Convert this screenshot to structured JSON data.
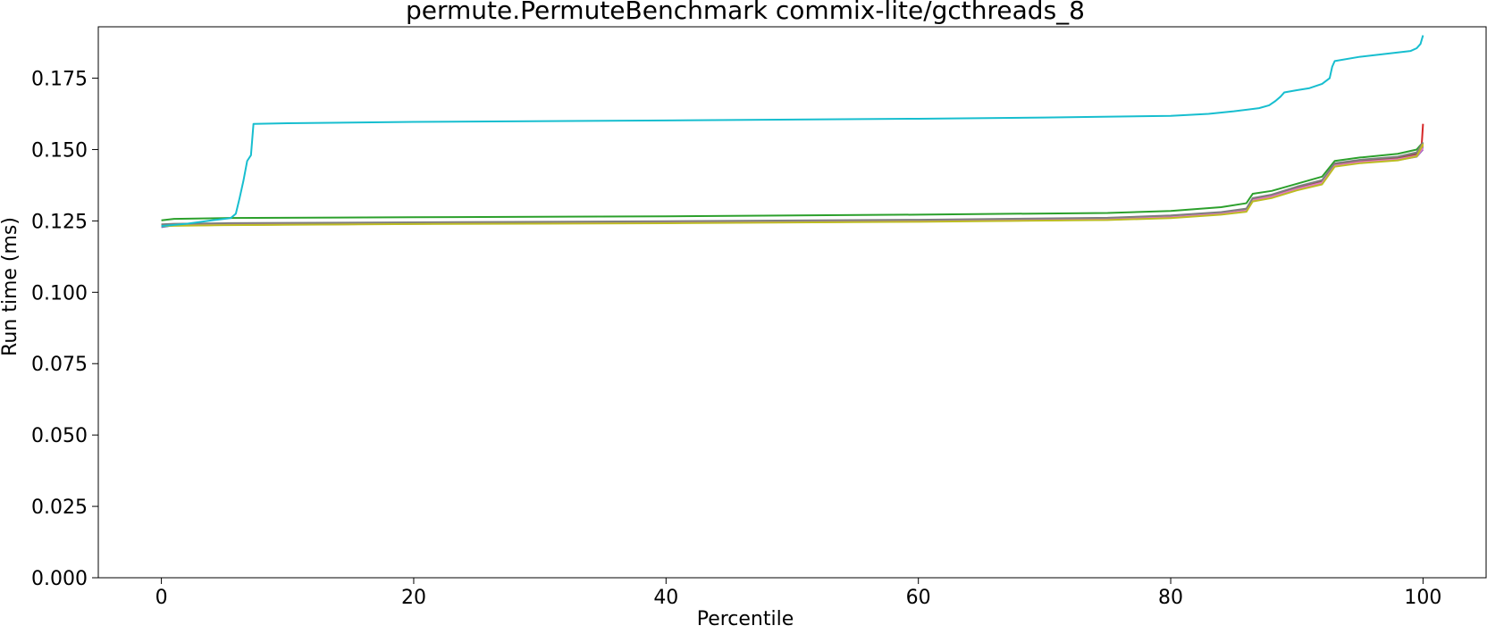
{
  "chart_data": {
    "type": "line",
    "title": "permute.PermuteBenchmark commix-lite/gcthreads_8",
    "xlabel": "Percentile",
    "ylabel": "Run time (ms)",
    "xlim": [
      -5,
      105
    ],
    "ylim": [
      0.0,
      0.193
    ],
    "xticks": [
      0,
      20,
      40,
      60,
      80,
      100
    ],
    "xtick_labels": [
      "0",
      "20",
      "40",
      "60",
      "80",
      "100"
    ],
    "yticks": [
      0.0,
      0.025,
      0.05,
      0.075,
      0.1,
      0.125,
      0.15,
      0.175
    ],
    "ytick_labels": [
      "0.000",
      "0.025",
      "0.050",
      "0.075",
      "0.100",
      "0.125",
      "0.150",
      "0.175"
    ],
    "grid": false,
    "legend": false,
    "series": [
      {
        "color": "#1f77b4",
        "x": [
          0,
          1,
          5,
          20,
          40,
          60,
          75,
          80,
          84,
          86,
          86.5,
          88,
          90,
          92,
          93,
          95,
          98,
          99.5,
          100
        ],
        "y": [
          0.1228,
          0.1235,
          0.1237,
          0.1242,
          0.1245,
          0.125,
          0.1256,
          0.1263,
          0.1275,
          0.1285,
          0.1322,
          0.1335,
          0.1362,
          0.1385,
          0.1445,
          0.1458,
          0.1468,
          0.148,
          0.151
        ]
      },
      {
        "color": "#ff7f0e",
        "x": [
          0,
          1,
          5,
          20,
          40,
          60,
          75,
          80,
          84,
          86,
          86.5,
          88,
          90,
          92,
          93,
          95,
          98,
          99.5,
          100
        ],
        "y": [
          0.1232,
          0.1234,
          0.1236,
          0.124,
          0.1243,
          0.1248,
          0.1254,
          0.1262,
          0.1273,
          0.1283,
          0.132,
          0.1332,
          0.1358,
          0.138,
          0.1442,
          0.1455,
          0.1465,
          0.1478,
          0.1515
        ]
      },
      {
        "color": "#2ca02c",
        "x": [
          0,
          1,
          5,
          20,
          40,
          60,
          75,
          80,
          84,
          86,
          86.5,
          88,
          90,
          92,
          93,
          95,
          98,
          99.5,
          100
        ],
        "y": [
          0.1252,
          0.1257,
          0.126,
          0.1263,
          0.1266,
          0.1272,
          0.1278,
          0.1285,
          0.1298,
          0.1312,
          0.1345,
          0.1355,
          0.138,
          0.1405,
          0.146,
          0.1472,
          0.1485,
          0.15,
          0.1525
        ]
      },
      {
        "color": "#d62728",
        "x": [
          0,
          1,
          5,
          20,
          40,
          60,
          75,
          80,
          84,
          86,
          86.5,
          88,
          90,
          92,
          93,
          95,
          98,
          99.5,
          99.9,
          100
        ],
        "y": [
          0.1233,
          0.1236,
          0.1238,
          0.1242,
          0.1246,
          0.1251,
          0.1257,
          0.1265,
          0.1277,
          0.1288,
          0.1326,
          0.1338,
          0.1365,
          0.1388,
          0.1448,
          0.146,
          0.147,
          0.1485,
          0.152,
          0.159
        ]
      },
      {
        "color": "#9467bd",
        "x": [
          0,
          1,
          5,
          20,
          40,
          60,
          75,
          80,
          84,
          86,
          86.5,
          88,
          90,
          92,
          93,
          95,
          98,
          99.5,
          100
        ],
        "y": [
          0.123,
          0.1234,
          0.1236,
          0.124,
          0.1244,
          0.1249,
          0.1255,
          0.1262,
          0.1274,
          0.1284,
          0.1321,
          0.1333,
          0.136,
          0.1382,
          0.1443,
          0.1455,
          0.1463,
          0.1475,
          0.15
        ]
      },
      {
        "color": "#8c564b",
        "x": [
          0,
          1,
          5,
          20,
          40,
          60,
          75,
          80,
          84,
          86,
          86.5,
          88,
          90,
          92,
          93,
          95,
          98,
          99.5,
          100
        ],
        "y": [
          0.1236,
          0.1238,
          0.124,
          0.1243,
          0.1247,
          0.1252,
          0.1259,
          0.1267,
          0.1279,
          0.129,
          0.1327,
          0.1339,
          0.1366,
          0.139,
          0.145,
          0.1462,
          0.1472,
          0.1486,
          0.152
        ]
      },
      {
        "color": "#e377c2",
        "x": [
          0,
          1,
          5,
          20,
          40,
          60,
          75,
          80,
          84,
          86,
          86.5,
          88,
          90,
          92,
          93,
          95,
          98,
          99.5,
          100
        ],
        "y": [
          0.1231,
          0.1235,
          0.1237,
          0.1241,
          0.1245,
          0.125,
          0.1256,
          0.1263,
          0.1276,
          0.1286,
          0.1323,
          0.1335,
          0.1362,
          0.1384,
          0.1444,
          0.1456,
          0.1466,
          0.1478,
          0.1505
        ]
      },
      {
        "color": "#7f7f7f",
        "x": [
          0,
          1,
          5,
          20,
          40,
          60,
          75,
          80,
          84,
          86,
          86.5,
          88,
          90,
          92,
          93,
          95,
          98,
          99.5,
          100
        ],
        "y": [
          0.1238,
          0.124,
          0.1242,
          0.1245,
          0.1249,
          0.1254,
          0.1261,
          0.1269,
          0.1281,
          0.1293,
          0.133,
          0.1342,
          0.137,
          0.1393,
          0.1452,
          0.1464,
          0.1475,
          0.149,
          0.1525
        ]
      },
      {
        "color": "#bcbd22",
        "x": [
          0,
          1,
          5,
          20,
          40,
          60,
          75,
          80,
          84,
          86,
          86.5,
          88,
          90,
          92,
          93,
          95,
          98,
          99.5,
          100
        ],
        "y": [
          0.1232,
          0.1233,
          0.1235,
          0.1239,
          0.1242,
          0.1247,
          0.1253,
          0.126,
          0.1272,
          0.1282,
          0.1318,
          0.133,
          0.1357,
          0.1378,
          0.144,
          0.1452,
          0.1462,
          0.1476,
          0.152
        ]
      },
      {
        "color": "#17becf",
        "x": [
          0,
          2,
          4,
          5.5,
          5.9,
          6.2,
          6.5,
          6.8,
          7.1,
          7.3,
          10,
          20,
          40,
          60,
          70,
          80,
          83,
          85,
          87,
          87.8,
          88.3,
          88.7,
          89,
          90,
          91,
          92,
          92.6,
          92.8,
          93,
          95,
          97,
          98,
          99,
          99.5,
          99.8,
          100
        ],
        "y": [
          0.1232,
          0.124,
          0.1252,
          0.126,
          0.1275,
          0.133,
          0.139,
          0.146,
          0.148,
          0.159,
          0.1592,
          0.1597,
          0.1602,
          0.1608,
          0.1612,
          0.1618,
          0.1625,
          0.1634,
          0.1645,
          0.1655,
          0.167,
          0.1685,
          0.17,
          0.1708,
          0.1715,
          0.173,
          0.175,
          0.179,
          0.181,
          0.1825,
          0.1835,
          0.184,
          0.1845,
          0.1855,
          0.187,
          0.19
        ]
      }
    ]
  }
}
